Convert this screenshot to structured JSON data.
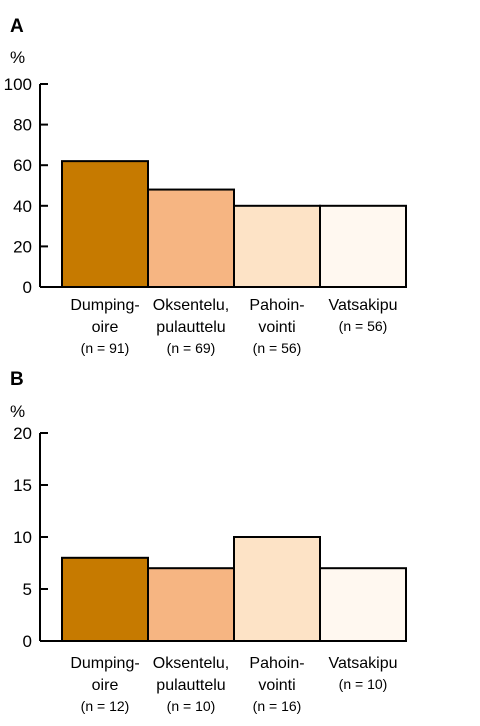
{
  "chart_data": [
    {
      "type": "bar",
      "panel": "A",
      "ylabel": "%",
      "ylim": [
        0,
        100
      ],
      "yticks": [
        "0",
        "20",
        "40",
        "60",
        "80",
        "100"
      ],
      "categories": [
        {
          "line1": "Dumping-",
          "line2": "oire",
          "n": "(n = 91)"
        },
        {
          "line1": "Oksentelu,",
          "line2": "pulauttelu",
          "n": "(n = 69)"
        },
        {
          "line1": "Pahoin-",
          "line2": "vointi",
          "n": "(n = 56)"
        },
        {
          "line1": "Vatsakipu",
          "line2": "",
          "n": "(n = 56)"
        }
      ],
      "values": [
        62,
        48,
        40,
        40
      ],
      "colors": [
        "#c67a00",
        "#f6b582",
        "#fde3c6",
        "#fff8f0"
      ]
    },
    {
      "type": "bar",
      "panel": "B",
      "ylabel": "%",
      "ylim": [
        0,
        20
      ],
      "yticks": [
        "0",
        "5",
        "10",
        "15",
        "20"
      ],
      "categories": [
        {
          "line1": "Dumping-",
          "line2": "oire",
          "n": "(n = 12)"
        },
        {
          "line1": "Oksentelu,",
          "line2": "pulauttelu",
          "n": "(n = 10)"
        },
        {
          "line1": "Pahoin-",
          "line2": "vointi",
          "n": "(n = 16)"
        },
        {
          "line1": "Vatsakipu",
          "line2": "",
          "n": "(n = 10)"
        }
      ],
      "values": [
        8,
        7,
        10,
        7
      ],
      "colors": [
        "#c67a00",
        "#f6b582",
        "#fde3c6",
        "#fff8f0"
      ]
    }
  ]
}
